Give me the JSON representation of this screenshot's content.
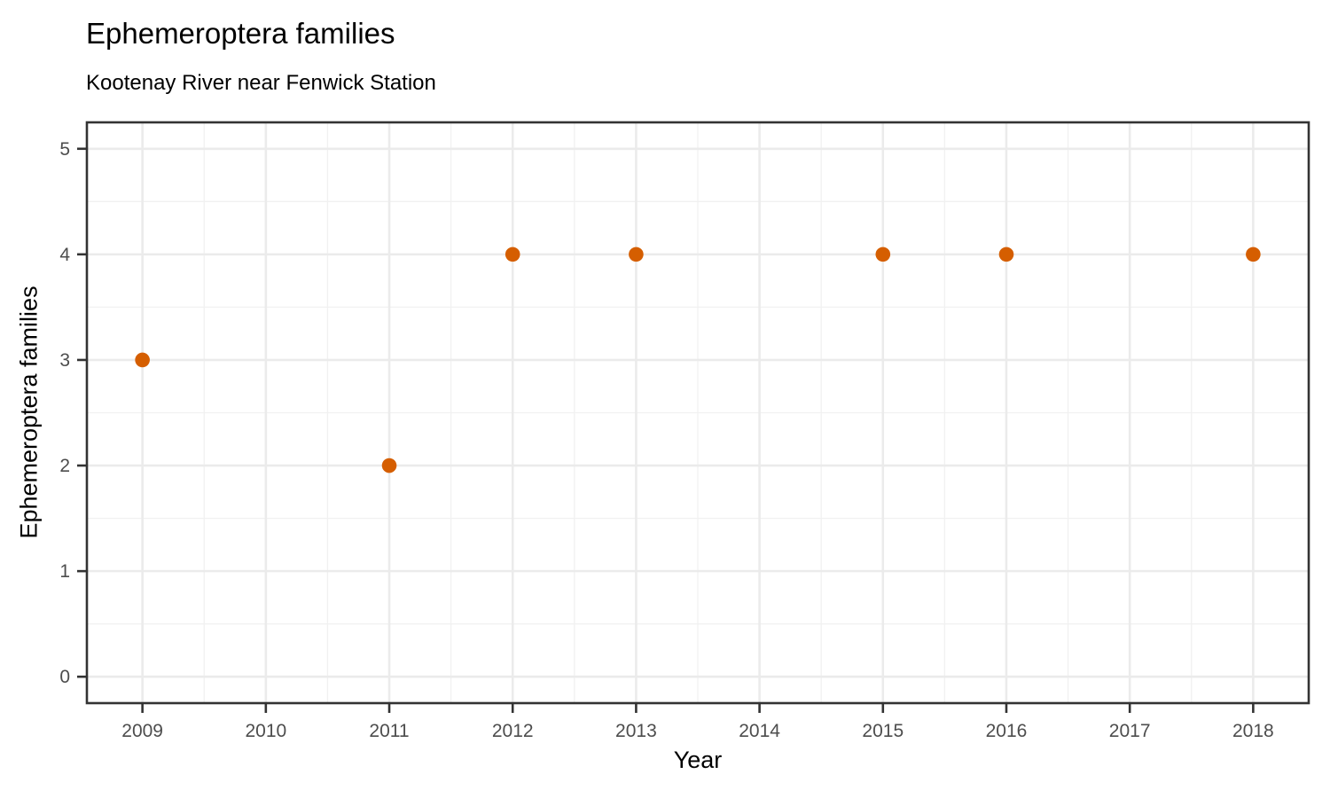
{
  "chart_data": {
    "type": "scatter",
    "title": "Ephemeroptera families",
    "subtitle": "Kootenay River near Fenwick Station",
    "xlabel": "Year",
    "ylabel": "Ephemeroptera families",
    "points": [
      {
        "x": 2009,
        "y": 3
      },
      {
        "x": 2011,
        "y": 2
      },
      {
        "x": 2012,
        "y": 4
      },
      {
        "x": 2013,
        "y": 4
      },
      {
        "x": 2015,
        "y": 4
      },
      {
        "x": 2016,
        "y": 4
      },
      {
        "x": 2018,
        "y": 4
      }
    ],
    "xlim": [
      2008.55,
      2018.45
    ],
    "ylim": [
      -0.25,
      5.25
    ],
    "x_ticks": [
      2009,
      2010,
      2011,
      2012,
      2013,
      2014,
      2015,
      2016,
      2017,
      2018
    ],
    "y_ticks": [
      0,
      1,
      2,
      3,
      4,
      5
    ],
    "x_minor": [
      2009.5,
      2010.5,
      2011.5,
      2012.5,
      2013.5,
      2014.5,
      2015.5,
      2016.5,
      2017.5
    ],
    "y_minor": [
      0.5,
      1.5,
      2.5,
      3.5,
      4.5
    ],
    "grid": true,
    "legend_position": "none",
    "colors": {
      "point": "#D55E00",
      "grid_major": "#EBEBEB",
      "grid_minor": "#F1F1F1",
      "panel_border": "#333333",
      "tick_mark": "#333333",
      "tick_label": "#4D4D4D",
      "text": "#000000",
      "panel_background": "#FFFFFF"
    }
  }
}
